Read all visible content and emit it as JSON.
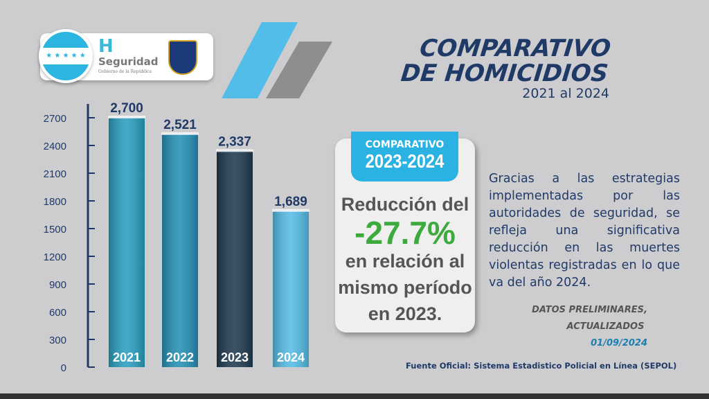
{
  "logo": {
    "flag_stars": "★ ★ ★ ★ ★",
    "mark": "H",
    "name": "Seguridad",
    "subtitle": "Gobierno de la República",
    "badge": "HONDURAS POLICÍA NACIONAL"
  },
  "header": {
    "title_line1": "COMPARATIVO",
    "title_line2": "DE HOMICIDIOS",
    "subtitle": "2021 al 2024"
  },
  "card": {
    "tab_label": "COMPARATIVO",
    "tab_years": "2023-2024",
    "line1": "Reducción del",
    "percent": "-27.7%",
    "line2": "en relación al",
    "line3": "mismo período",
    "line4": "en 2023."
  },
  "description": "Gracias a las estrategias implementadas por las autoridades de seguridad, se refleja una significativa reducción en las muertes violentas registradas en lo que va del año 2024.",
  "datos": {
    "line1": "DATOS PRELIMINARES,",
    "line2": "ACTUALIZADOS",
    "date": "01/09/2024"
  },
  "source": "Fuente Oficial: Sistema Estadistico Policial en Línea (SEPOL)",
  "colors": {
    "navy": "#1f3a66",
    "cyan": "#2ab3e2",
    "green": "#3caa3c"
  },
  "chart_data": {
    "type": "bar",
    "categories": [
      "2021",
      "2022",
      "2023",
      "2024"
    ],
    "values": [
      2700,
      2521,
      2337,
      1689
    ],
    "data_labels": [
      "2,700",
      "2,521",
      "2,337",
      "1,689"
    ],
    "yticks": [
      0,
      300,
      600,
      900,
      1200,
      1500,
      1800,
      2100,
      2400,
      2700
    ],
    "ylim": [
      0,
      2700
    ],
    "grid": false,
    "bar_colors": [
      "#2a9fc0",
      "#2590b5",
      "#1f3a4f",
      "#55bde6"
    ]
  }
}
